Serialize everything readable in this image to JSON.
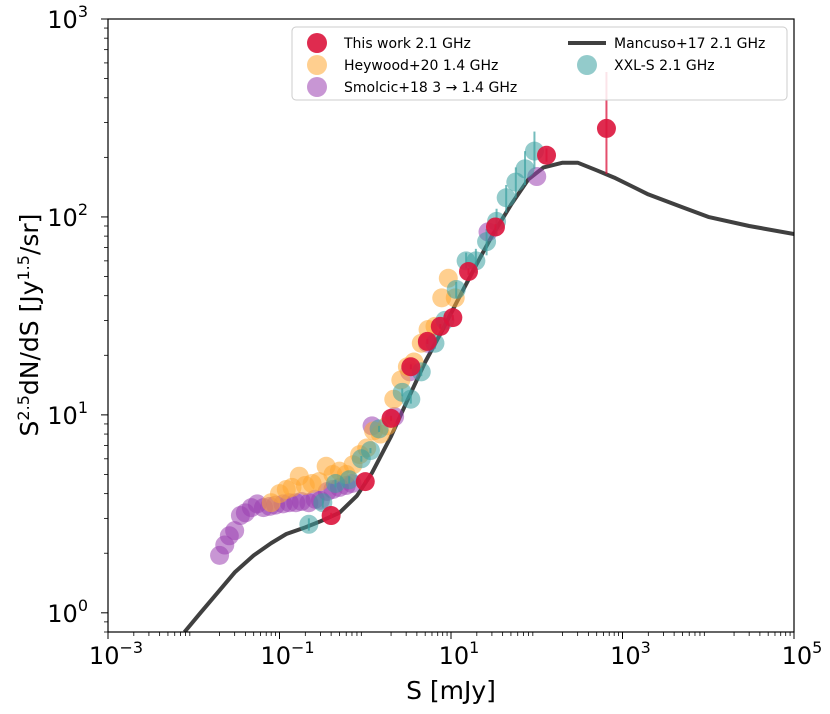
{
  "chart_data": {
    "type": "scatter",
    "title": "",
    "xlabel": "S [mJy]",
    "ylabel": "S^2.5dN/dS [Jy^1.5/sr]",
    "xscale": "log",
    "yscale": "log",
    "xlim": [
      0.001,
      100000
    ],
    "ylim": [
      0.8,
      1000
    ],
    "x_ticks": [
      {
        "value": 0.001,
        "base": "10",
        "exp": "−3"
      },
      {
        "value": 0.1,
        "base": "10",
        "exp": "−1"
      },
      {
        "value": 10,
        "base": "10",
        "exp": "1"
      },
      {
        "value": 1000,
        "base": "10",
        "exp": "3"
      },
      {
        "value": 100000,
        "base": "10",
        "exp": "5"
      }
    ],
    "y_ticks": [
      {
        "value": 1,
        "base": "10",
        "exp": "0"
      },
      {
        "value": 10,
        "base": "10",
        "exp": "1"
      },
      {
        "value": 100,
        "base": "10",
        "exp": "2"
      },
      {
        "value": 1000,
        "base": "10",
        "exp": "3"
      }
    ],
    "legend": {
      "position": "upper-right",
      "entries": [
        {
          "label": "This work 2.1 GHz",
          "series": "this_work"
        },
        {
          "label": "Heywood+20 1.4 GHz",
          "series": "heywood"
        },
        {
          "label": "Smolcic+18 3 → 1.4 GHz",
          "series": "smolcic"
        },
        {
          "label": "Mancuso+17 2.1 GHz",
          "series": "mancuso"
        },
        {
          "label": "XXL-S 2.1 GHz",
          "series": "xxls"
        }
      ]
    },
    "series": [
      {
        "key": "mancuso",
        "name": "Mancuso+17 2.1 GHz",
        "kind": "line",
        "color": "#404040",
        "x": [
          0.0078,
          0.012,
          0.02,
          0.03,
          0.05,
          0.08,
          0.12,
          0.2,
          0.3,
          0.5,
          0.8,
          1.2,
          2,
          3,
          5,
          8,
          12,
          20,
          30,
          50,
          80,
          120,
          200,
          300,
          500,
          800,
          1200,
          2000,
          5000,
          10000,
          30000,
          100000
        ],
        "y": [
          0.8,
          1.0,
          1.3,
          1.6,
          1.95,
          2.25,
          2.5,
          2.7,
          2.9,
          3.2,
          3.9,
          5.1,
          7.8,
          11.5,
          18.5,
          27,
          38,
          58,
          80,
          115,
          155,
          178,
          188,
          188,
          172,
          158,
          145,
          130,
          112,
          100,
          90,
          82
        ]
      },
      {
        "key": "smolcic",
        "name": "Smolcic+18 3 → 1.4 GHz",
        "kind": "points",
        "color": "#9b3fb0",
        "x": [
          0.02,
          0.023,
          0.026,
          0.03,
          0.035,
          0.04,
          0.047,
          0.055,
          0.065,
          0.077,
          0.09,
          0.11,
          0.13,
          0.155,
          0.18,
          0.22,
          0.26,
          0.3,
          0.36,
          0.42,
          0.5,
          0.6,
          0.7,
          1.2,
          2.2,
          3.3,
          5.3,
          27,
          100
        ],
        "y": [
          1.95,
          2.2,
          2.45,
          2.6,
          3.1,
          3.2,
          3.4,
          3.55,
          3.4,
          3.45,
          3.5,
          3.55,
          3.6,
          3.6,
          3.65,
          3.6,
          3.75,
          3.7,
          4.1,
          4.2,
          4.3,
          4.4,
          4.5,
          8.8,
          9.8,
          16.5,
          23,
          84,
          160
        ]
      },
      {
        "key": "heywood",
        "name": "Heywood+20 1.4 GHz",
        "kind": "points",
        "color": "#ffa733",
        "x": [
          0.08,
          0.1,
          0.12,
          0.14,
          0.17,
          0.2,
          0.24,
          0.29,
          0.35,
          0.42,
          0.5,
          0.6,
          0.72,
          0.86,
          1.04,
          1.25,
          1.5,
          1.8,
          2.15,
          2.6,
          3.1,
          3.7,
          4.5,
          5.4,
          6.5,
          7.8,
          9.3,
          11.2
        ],
        "y": [
          3.6,
          4.0,
          4.2,
          4.3,
          4.9,
          4.4,
          4.5,
          4.6,
          5.5,
          5.0,
          5.2,
          5.0,
          5.6,
          6.3,
          6.8,
          8.3,
          8.0,
          8.8,
          12.0,
          15.0,
          17.5,
          18.5,
          23,
          27,
          28,
          39,
          49,
          39
        ]
      },
      {
        "key": "xxls",
        "name": "XXL-S 2.1 GHz",
        "kind": "points",
        "color": "#3aa0a0",
        "x": [
          0.22,
          0.32,
          0.45,
          0.65,
          0.9,
          1.15,
          1.45,
          2.7,
          3.4,
          4.5,
          6.5,
          8.5,
          11.5,
          15,
          19.5,
          26,
          34,
          44,
          57,
          73,
          94
        ],
        "y": [
          2.8,
          3.6,
          4.5,
          4.7,
          6.0,
          6.6,
          8.5,
          13.0,
          12.0,
          16.5,
          23,
          30,
          43,
          60,
          60,
          75,
          95,
          125,
          150,
          175,
          215
        ],
        "err_low": [
          2.6,
          3.4,
          4.3,
          4.5,
          5.8,
          6.4,
          8.2,
          12.4,
          11.4,
          15.7,
          21.6,
          28.0,
          39.0,
          55.0,
          52.0,
          64.0,
          80.0,
          105.0,
          125.0,
          145.0,
          175.0
        ],
        "err_high": [
          3.0,
          3.8,
          4.7,
          4.9,
          6.2,
          6.8,
          8.8,
          13.6,
          12.6,
          17.3,
          24.4,
          32.0,
          47.0,
          66.0,
          69.0,
          87.0,
          110.0,
          145.0,
          178.0,
          215.0,
          270.0
        ]
      },
      {
        "key": "this_work",
        "name": "This work 2.1 GHz",
        "kind": "points",
        "color": "#dc143c",
        "x": [
          0.4,
          1.0,
          2.0,
          3.4,
          5.3,
          7.5,
          10.5,
          16,
          33,
          130,
          650
        ],
        "y": [
          3.1,
          4.6,
          9.6,
          17.5,
          23.5,
          28,
          31,
          53,
          89,
          205,
          280
        ],
        "err_low": [
          3.0,
          4.5,
          9.3,
          17.0,
          22.8,
          27.2,
          30.0,
          51.0,
          86.0,
          190.0,
          165.0
        ],
        "err_high": [
          3.2,
          4.7,
          9.9,
          18.0,
          24.2,
          28.8,
          32.0,
          55.0,
          92.0,
          222.0,
          540.0
        ]
      }
    ]
  }
}
